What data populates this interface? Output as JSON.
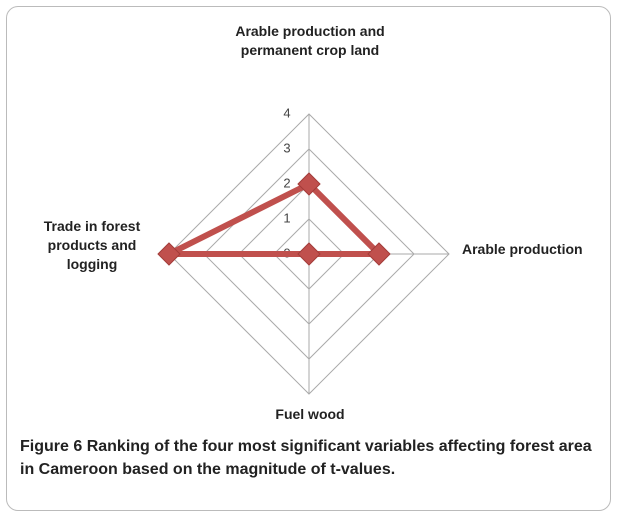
{
  "chart_data": {
    "type": "radar",
    "categories": [
      "Arable production and permanent crop land",
      "Arable production",
      "Fuel wood",
      "Trade in forest products and logging"
    ],
    "series": [
      {
        "name": "t-values",
        "color": "#c0504d",
        "values": [
          2,
          2,
          0,
          4
        ]
      }
    ],
    "ylim": [
      0,
      4
    ],
    "yticks": [
      0,
      1,
      2,
      3,
      4
    ],
    "grid": true
  },
  "caption_label": "Figure 6",
  "caption": "Ranking of the four most significant variables affecting forest area in Cameroon based on the magnitude of t-values."
}
